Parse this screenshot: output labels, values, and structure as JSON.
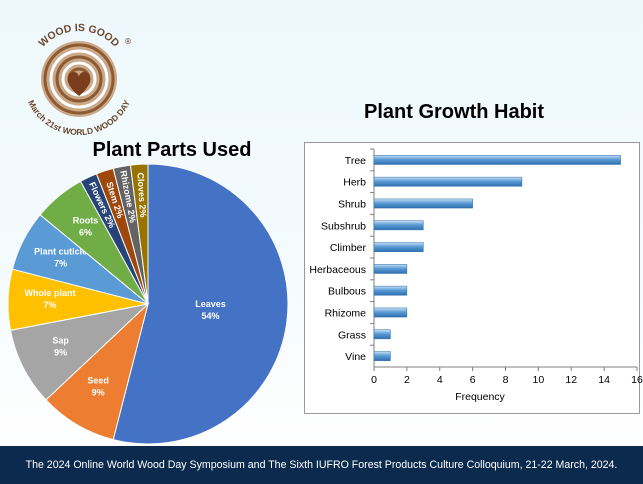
{
  "logo": {
    "top_text": "WOOD IS GOOD",
    "bottom_text": "March 21st WORLD WOOD DAY",
    "mark": "®",
    "icon": "heart-wood-rings-icon",
    "colors": {
      "ring": "#c9a98a",
      "ring_dark": "#8d5a32",
      "text": "#6b4a2e",
      "heart": "#7a3e1d"
    }
  },
  "pie_chart": {
    "title": "Plant Parts Used"
  },
  "bar_chart": {
    "title": "Plant Growth Habit"
  },
  "chart_data": [
    {
      "type": "pie",
      "title": "Plant Parts Used",
      "categories": [
        "Leaves",
        "Seed",
        "Sap",
        "Whole plant",
        "Plant cuticle",
        "Roots",
        "Flowers",
        "Stem",
        "Rhizome",
        "Cloves"
      ],
      "values": [
        54,
        9,
        9,
        7,
        7,
        6,
        2,
        2,
        2,
        2
      ],
      "value_suffix": "%",
      "colors": [
        "#4472c4",
        "#ed7d31",
        "#a5a5a5",
        "#ffc000",
        "#5b9bd5",
        "#70ad47",
        "#264478",
        "#9e480e",
        "#636363",
        "#997300"
      ]
    },
    {
      "type": "bar",
      "orientation": "horizontal",
      "title": "Plant Growth Habit",
      "categories": [
        "Tree",
        "Herb",
        "Shrub",
        "Subshrub",
        "Climber",
        "Herbaceous",
        "Bulbous",
        "Rhizome",
        "Grass",
        "Vine"
      ],
      "values": [
        15,
        9,
        6,
        3,
        3,
        2,
        2,
        2,
        1,
        1
      ],
      "xlabel": "Frequency",
      "xlim": [
        0,
        16
      ],
      "xticks": [
        0,
        2,
        4,
        6,
        8,
        10,
        12,
        14,
        16
      ],
      "grid": false,
      "bar_color": "#5b9bd5"
    }
  ],
  "footer": {
    "text": "The 2024 Online World Wood Day Symposium and The Sixth IUFRO Forest Products Culture Colloquium, 21-22 March, 2024."
  }
}
